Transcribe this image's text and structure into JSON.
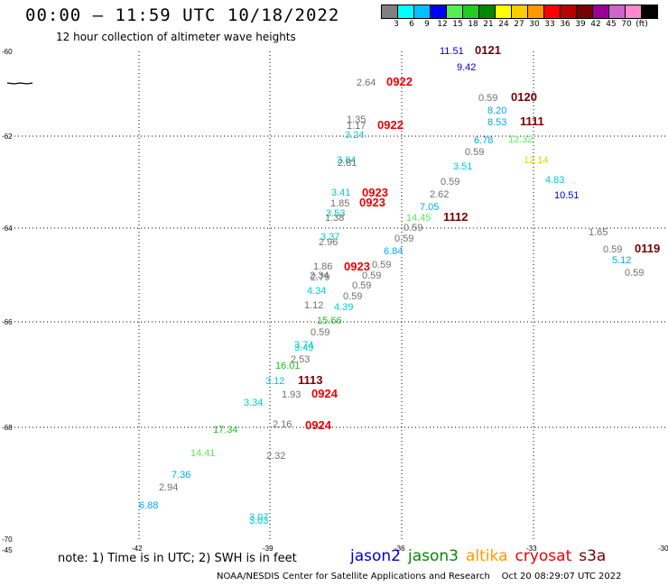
{
  "header": {
    "title": "00:00 – 11:59 UTC 10/18/2022",
    "subtitle": "12 hour collection of altimeter wave heights"
  },
  "scale": {
    "colors": [
      "#808080",
      "#00ffff",
      "#00bfff",
      "#0000ff",
      "#55ee55",
      "#22cc22",
      "#008800",
      "#ffff00",
      "#ffcc00",
      "#ff9900",
      "#ff0000",
      "#bb0000",
      "#770000",
      "#990099",
      "#cc66cc",
      "#ff88cc",
      "#000000"
    ],
    "labels": [
      "3",
      "6",
      "9",
      "12",
      "15",
      "18",
      "21",
      "24",
      "27",
      "30",
      "33",
      "36",
      "39",
      "42",
      "45",
      "70",
      "(ft)"
    ]
  },
  "axes": {
    "lat_labels": [
      "-60",
      "-62",
      "-64",
      "-66",
      "-68",
      "-70"
    ],
    "lon_labels": [
      "-45",
      "-42",
      "-39",
      "-36",
      "-33",
      "-30"
    ]
  },
  "observations": [
    {
      "text": "11.51",
      "color": "#0000cc"
    },
    {
      "text": "0121",
      "color": "#770000",
      "pass": true
    },
    {
      "text": "9.42",
      "color": "#0000cc"
    },
    {
      "text": "2.64",
      "color": "#707070"
    },
    {
      "text": "0922",
      "color": "#ee0000",
      "pass": true
    },
    {
      "text": "0.59",
      "color": "#707070"
    },
    {
      "text": "0120",
      "color": "#770000",
      "pass": true
    },
    {
      "text": "8.20",
      "color": "#00aaee"
    },
    {
      "text": "1.35",
      "color": "#707070"
    },
    {
      "text": "1.17",
      "color": "#707070"
    },
    {
      "text": "0922",
      "color": "#ee0000",
      "pass": true
    },
    {
      "text": "8.53",
      "color": "#00aaee"
    },
    {
      "text": "1111",
      "color": "#770000",
      "pass": true
    },
    {
      "text": "3.24",
      "color": "#00cccc"
    },
    {
      "text": "6.78",
      "color": "#00aaee"
    },
    {
      "text": "12.32",
      "color": "#55ee55"
    },
    {
      "text": "0.59",
      "color": "#707070"
    },
    {
      "text": "3.84",
      "color": "#00cccc"
    },
    {
      "text": "2.81",
      "color": "#707070"
    },
    {
      "text": "3.51",
      "color": "#00cccc"
    },
    {
      "text": "12.14",
      "color": "#e6d200"
    },
    {
      "text": "0.59",
      "color": "#707070"
    },
    {
      "text": "4.83",
      "color": "#00cccc"
    },
    {
      "text": "3.41",
      "color": "#00cccc"
    },
    {
      "text": "0923",
      "color": "#ee0000",
      "pass": true
    },
    {
      "text": "2.62",
      "color": "#707070"
    },
    {
      "text": "10.51",
      "color": "#0000cc"
    },
    {
      "text": "1.85",
      "color": "#707070"
    },
    {
      "text": "0923",
      "color": "#ee0000",
      "pass": true
    },
    {
      "text": "3.53",
      "color": "#00cccc"
    },
    {
      "text": "7.05",
      "color": "#00aaee"
    },
    {
      "text": "1.38",
      "color": "#707070"
    },
    {
      "text": "14.45",
      "color": "#55ee55"
    },
    {
      "text": "1112",
      "color": "#770000",
      "pass": true
    },
    {
      "text": "0.59",
      "color": "#707070"
    },
    {
      "text": "1.65",
      "color": "#707070"
    },
    {
      "text": "3.37",
      "color": "#00cccc"
    },
    {
      "text": "0.59",
      "color": "#707070"
    },
    {
      "text": "2.96",
      "color": "#707070"
    },
    {
      "text": "6.84",
      "color": "#00aaee"
    },
    {
      "text": "0.59",
      "color": "#707070"
    },
    {
      "text": "0119",
      "color": "#770000",
      "pass": true
    },
    {
      "text": "5.12",
      "color": "#00aaee"
    },
    {
      "text": "1.86",
      "color": "#707070"
    },
    {
      "text": "0923",
      "color": "#ee0000",
      "pass": true
    },
    {
      "text": "0.59",
      "color": "#707070"
    },
    {
      "text": "2.34",
      "color": "#707070"
    },
    {
      "text": "0.59",
      "color": "#707070"
    },
    {
      "text": "0.59",
      "color": "#707070"
    },
    {
      "text": "2.79",
      "color": "#707070"
    },
    {
      "text": "0.59",
      "color": "#707070"
    },
    {
      "text": "4.34",
      "color": "#00cccc"
    },
    {
      "text": "0.59",
      "color": "#707070"
    },
    {
      "text": "1.12",
      "color": "#707070"
    },
    {
      "text": "4.39",
      "color": "#00cccc"
    },
    {
      "text": "15.66",
      "color": "#22bb22"
    },
    {
      "text": "0.59",
      "color": "#707070"
    },
    {
      "text": "3.74",
      "color": "#00cccc"
    },
    {
      "text": "3.49",
      "color": "#00cccc"
    },
    {
      "text": "2.53",
      "color": "#707070"
    },
    {
      "text": "16.01",
      "color": "#22bb22"
    },
    {
      "text": "3.12",
      "color": "#00cccc"
    },
    {
      "text": "1113",
      "color": "#770000",
      "pass": true
    },
    {
      "text": "1.93",
      "color": "#707070"
    },
    {
      "text": "0924",
      "color": "#ee0000",
      "pass": true
    },
    {
      "text": "3.34",
      "color": "#00cccc"
    },
    {
      "text": "17.34",
      "color": "#22bb22"
    },
    {
      "text": "2.16",
      "color": "#707070"
    },
    {
      "text": "0924",
      "color": "#ee0000",
      "pass": true
    },
    {
      "text": "14.41",
      "color": "#55ee55"
    },
    {
      "text": "2.32",
      "color": "#707070"
    },
    {
      "text": "7.36",
      "color": "#00aaee"
    },
    {
      "text": "2.94",
      "color": "#707070"
    },
    {
      "text": "6.88",
      "color": "#00aaee"
    },
    {
      "text": "3.07",
      "color": "#00cccc"
    },
    {
      "text": "3.03",
      "color": "#00cccc"
    }
  ],
  "footer": {
    "note": "note: 1) Time is in UTC; 2) SWH is in feet",
    "missions": [
      {
        "name": "jason2",
        "color": "#0000cc"
      },
      {
        "name": "jason3",
        "color": "#008800"
      },
      {
        "name": "altika",
        "color": "#ff9900"
      },
      {
        "name": "cryosat",
        "color": "#ee0000"
      },
      {
        "name": "s3a",
        "color": "#770000"
      }
    ],
    "credit": "NOAA/NESDIS Center for Satellite Applications and Research",
    "timestamp": "Oct 20 08:29:07 UTC 2022"
  }
}
